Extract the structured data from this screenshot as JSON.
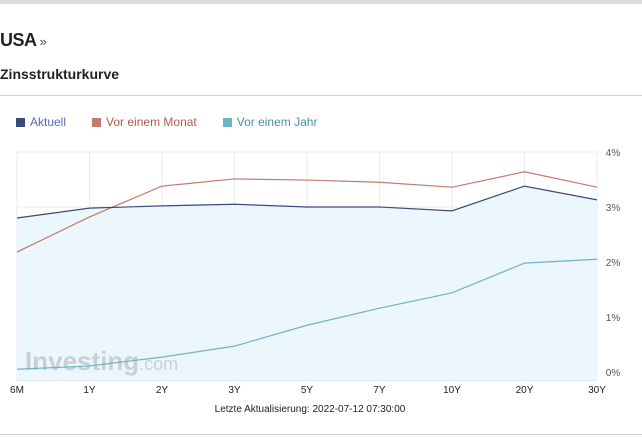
{
  "header": {
    "title": "USA",
    "title_arrow": "»",
    "subtitle": "Zinsstrukturkurve"
  },
  "watermark": "Investing.com",
  "footer": {
    "updated": "Letzte Aktualisierung: 2022-07-12 07:30:00"
  },
  "chart_data": {
    "type": "line",
    "title": "Zinsstrukturkurve",
    "categories": [
      "6M",
      "1Y",
      "2Y",
      "3Y",
      "5Y",
      "7Y",
      "10Y",
      "20Y",
      "30Y"
    ],
    "y_ticks": [
      "0%",
      "1%",
      "2%",
      "3%",
      "4%"
    ],
    "ylim": [
      0,
      4
    ],
    "ylabel": "",
    "xlabel": "",
    "grid": true,
    "legend_position": "top-left",
    "series": [
      {
        "name": "Aktuell",
        "color": "#3b4a7a",
        "text_color": "#5a6cb0",
        "values": [
          2.8,
          2.98,
          3.02,
          3.05,
          3.0,
          3.0,
          2.93,
          3.38,
          3.13
        ],
        "fill": true
      },
      {
        "name": "Vor einem Monat",
        "color": "#c47a6e",
        "text_color": "#b05a4e",
        "values": [
          2.18,
          2.82,
          3.38,
          3.51,
          3.49,
          3.45,
          3.36,
          3.64,
          3.36
        ]
      },
      {
        "name": "Vor einem Jahr",
        "color": "#6fb3c7",
        "text_color": "#4a8fa5",
        "values": [
          0.05,
          0.11,
          0.27,
          0.47,
          0.85,
          1.16,
          1.44,
          1.98,
          2.05
        ]
      }
    ]
  }
}
